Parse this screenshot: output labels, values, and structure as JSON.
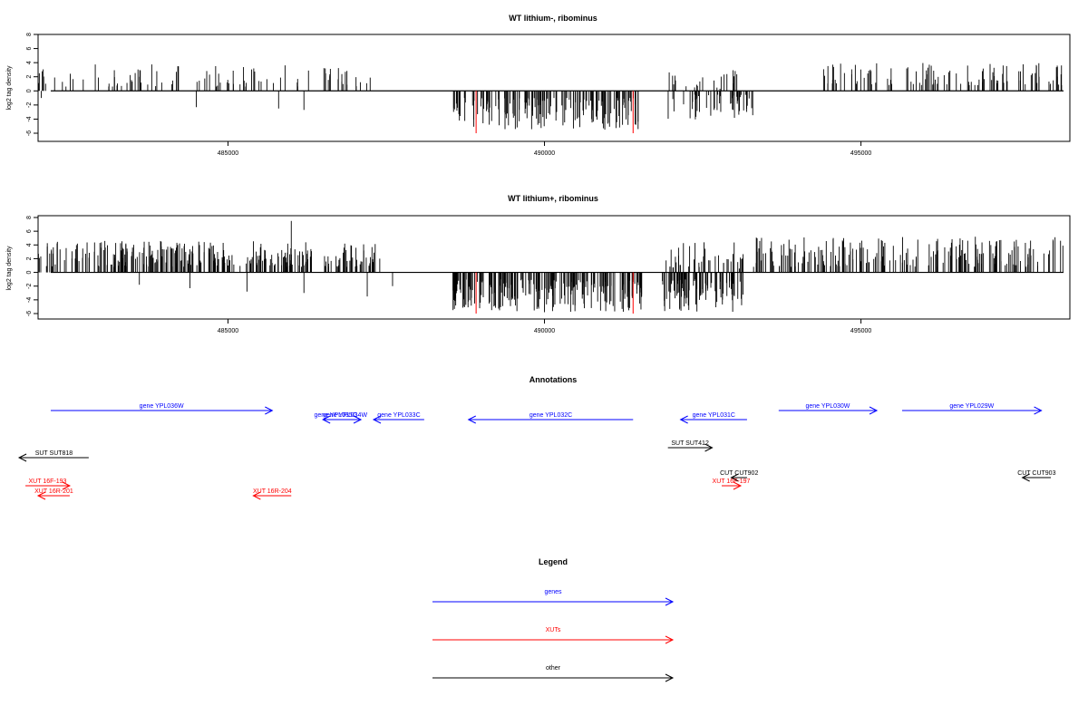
{
  "colors": {
    "gene": "#0000ff",
    "xut": "#ff0000",
    "other": "#000000",
    "bar": "#000000",
    "highlight": "#ff0000"
  },
  "chart_data": [
    {
      "type": "bar",
      "title": "WT lithium-, ribominus",
      "ylabel": "log2 tag density",
      "xlim": [
        482000,
        498300
      ],
      "ylim": [
        -6,
        8
      ],
      "yticks": [
        -6,
        -4,
        -2,
        0,
        2,
        4,
        6,
        8
      ],
      "xticks": [
        485000,
        490000,
        495000
      ],
      "series": [
        {
          "values_source": "bars",
          "segments": [
            {
              "x_start": 482000,
              "x_end": 486300,
              "sign": 1,
              "min": 0.6,
              "max": 3.8,
              "count": 75
            },
            {
              "x_start": 486500,
              "x_end": 487300,
              "sign": 1,
              "min": 0.5,
              "max": 3.3,
              "count": 20
            },
            {
              "x_start": 488550,
              "x_end": 491500,
              "sign": -1,
              "min": 1.0,
              "max": 5.5,
              "count": 170
            },
            {
              "x_start": 491950,
              "x_end": 493300,
              "sign": -1,
              "min": 0.5,
              "max": 4.2,
              "count": 55
            },
            {
              "x_start": 491950,
              "x_end": 493300,
              "sign": 1,
              "min": 0.3,
              "max": 3.0,
              "count": 22
            },
            {
              "x_start": 494400,
              "x_end": 498200,
              "sign": 1,
              "min": 0.8,
              "max": 4.0,
              "count": 110
            }
          ],
          "extra": [
            {
              "x": 482050,
              "y": -1.0
            },
            {
              "x": 484500,
              "y": -2.3
            },
            {
              "x": 485800,
              "y": -2.5
            },
            {
              "x": 486200,
              "y": -2.7
            }
          ]
        }
      ],
      "highlights": [
        {
          "x": 488920,
          "y": -6.0
        },
        {
          "x": 491400,
          "y": -6.0
        }
      ]
    },
    {
      "type": "bar",
      "title": "WT lithium+, ribominus",
      "ylabel": "log2 tag density",
      "xlim": [
        482000,
        498300
      ],
      "ylim": [
        -6,
        8
      ],
      "yticks": [
        -6,
        -4,
        -2,
        0,
        2,
        4,
        6,
        8
      ],
      "xticks": [
        485000,
        490000,
        495000
      ],
      "series": [
        {
          "values_source": "bars",
          "segments": [
            {
              "x_start": 482000,
              "x_end": 486350,
              "sign": 1,
              "min": 0.8,
              "max": 4.6,
              "count": 260
            },
            {
              "x_start": 486500,
              "x_end": 487400,
              "sign": 1,
              "min": 0.8,
              "max": 4.4,
              "count": 45
            },
            {
              "x_start": 488550,
              "x_end": 491550,
              "sign": -1,
              "min": 1.0,
              "max": 5.8,
              "count": 210
            },
            {
              "x_start": 491850,
              "x_end": 493200,
              "sign": -1,
              "min": 1.0,
              "max": 5.8,
              "count": 90
            },
            {
              "x_start": 491850,
              "x_end": 493200,
              "sign": 1,
              "min": 0.5,
              "max": 4.5,
              "count": 40
            },
            {
              "x_start": 493300,
              "x_end": 498200,
              "sign": 1,
              "min": 0.8,
              "max": 5.2,
              "count": 200
            }
          ],
          "extra": [
            {
              "x": 486000,
              "y": 7.5
            },
            {
              "x": 483600,
              "y": -1.8
            },
            {
              "x": 484400,
              "y": -2.3
            },
            {
              "x": 485300,
              "y": -2.8
            },
            {
              "x": 486200,
              "y": -3.0
            },
            {
              "x": 487200,
              "y": -3.5
            },
            {
              "x": 487600,
              "y": -2.0
            }
          ]
        }
      ],
      "highlights": [
        {
          "x": 488920,
          "y": -6.0
        },
        {
          "x": 491400,
          "y": -6.0
        }
      ]
    }
  ],
  "annotations": {
    "title": "Annotations",
    "items": [
      {
        "label": "gene YPL036W",
        "kind": "gene",
        "from": 482200,
        "to": 485700
      },
      {
        "label": "gene YPL034W",
        "kind": "gene",
        "from": 486600,
        "to": 487100
      },
      {
        "label": "gene YPL035C",
        "kind": "gene",
        "from": 486900,
        "to": 486500
      },
      {
        "label": "gene YPL033C",
        "kind": "gene",
        "from": 488100,
        "to": 487300
      },
      {
        "label": "gene YPL032C",
        "kind": "gene",
        "from": 491400,
        "to": 488800
      },
      {
        "label": "gene YPL031C",
        "kind": "gene",
        "from": 493200,
        "to": 492150
      },
      {
        "label": "gene YPL030W",
        "kind": "gene",
        "from": 493700,
        "to": 495250
      },
      {
        "label": "gene YPL029W",
        "kind": "gene",
        "from": 495650,
        "to": 497850
      },
      {
        "label": "SUT SUT818",
        "kind": "other",
        "from": 482800,
        "to": 481700
      },
      {
        "label": "SUT SUT412",
        "kind": "other",
        "from": 491950,
        "to": 492650
      },
      {
        "label": "CUT CUT902",
        "kind": "other",
        "from": 493200,
        "to": 492950
      },
      {
        "label": "CUT CUT903",
        "kind": "other",
        "from": 498000,
        "to": 497550
      },
      {
        "label": "XUT 16F-193",
        "kind": "xut",
        "from": 481800,
        "to": 482500
      },
      {
        "label": "XUT 16R-201",
        "kind": "xut",
        "from": 482500,
        "to": 482000
      },
      {
        "label": "XUT 16R-204",
        "kind": "xut",
        "from": 486000,
        "to": 485400
      },
      {
        "label": "XUT 16F-197",
        "kind": "xut",
        "from": 492800,
        "to": 493100
      }
    ]
  },
  "legend": {
    "title": "Legend",
    "items": [
      {
        "label": "genes",
        "kind": "gene"
      },
      {
        "label": "XUTs",
        "kind": "xut"
      },
      {
        "label": "other",
        "kind": "other"
      }
    ]
  }
}
